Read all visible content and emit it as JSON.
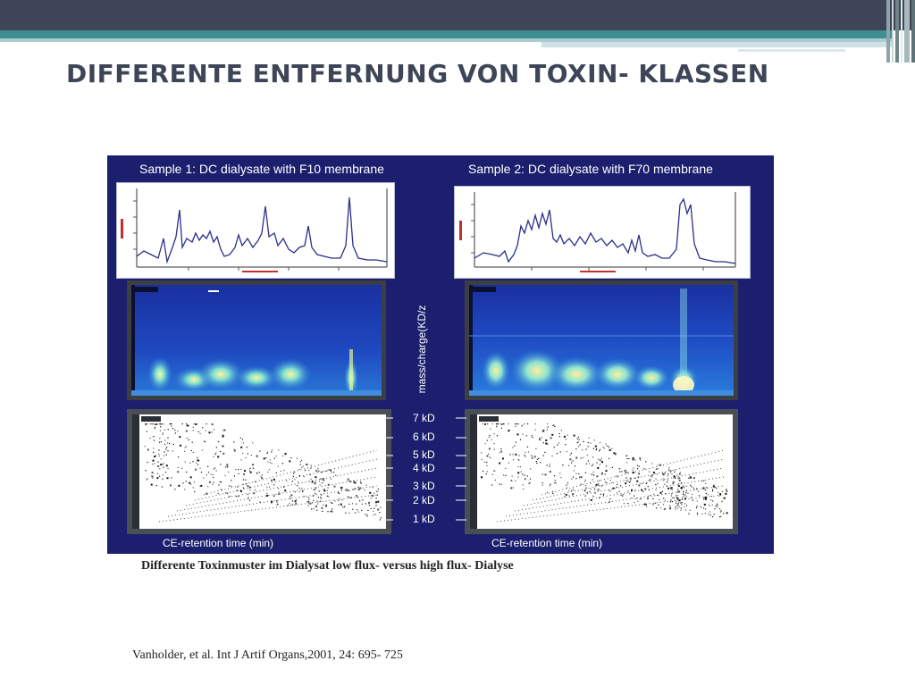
{
  "slide": {
    "title": "DIFFERENTE ENTFERNUNG VON TOXIN- KLASSEN",
    "caption": "Differente Toxinmuster im Dialysat low flux- versus high flux- Dialyse",
    "reference": "Vanholder, et al. Int J Artif Organs,2001, 24: 695- 725"
  },
  "figure": {
    "sample1_title": "Sample 1: DC dialysate with F10 membrane",
    "sample2_title": "Sample 2: DC dialysate with F70 membrane",
    "y_axis_label": "mass/charge(KD/z",
    "x_axis_label_left": "CE-retention time (min)",
    "x_axis_label_right": "CE-retention time (min)",
    "mass_ticks": [
      "7 kD",
      "6 kD",
      "5 kD",
      "4 kD",
      "3 kD",
      "2 kD",
      "1 kD"
    ]
  },
  "colors": {
    "header_dark": "#3d4557",
    "header_teal": "#3f8f90",
    "figure_bg": "#1b1f6e",
    "trace": "#2a2f8a"
  }
}
